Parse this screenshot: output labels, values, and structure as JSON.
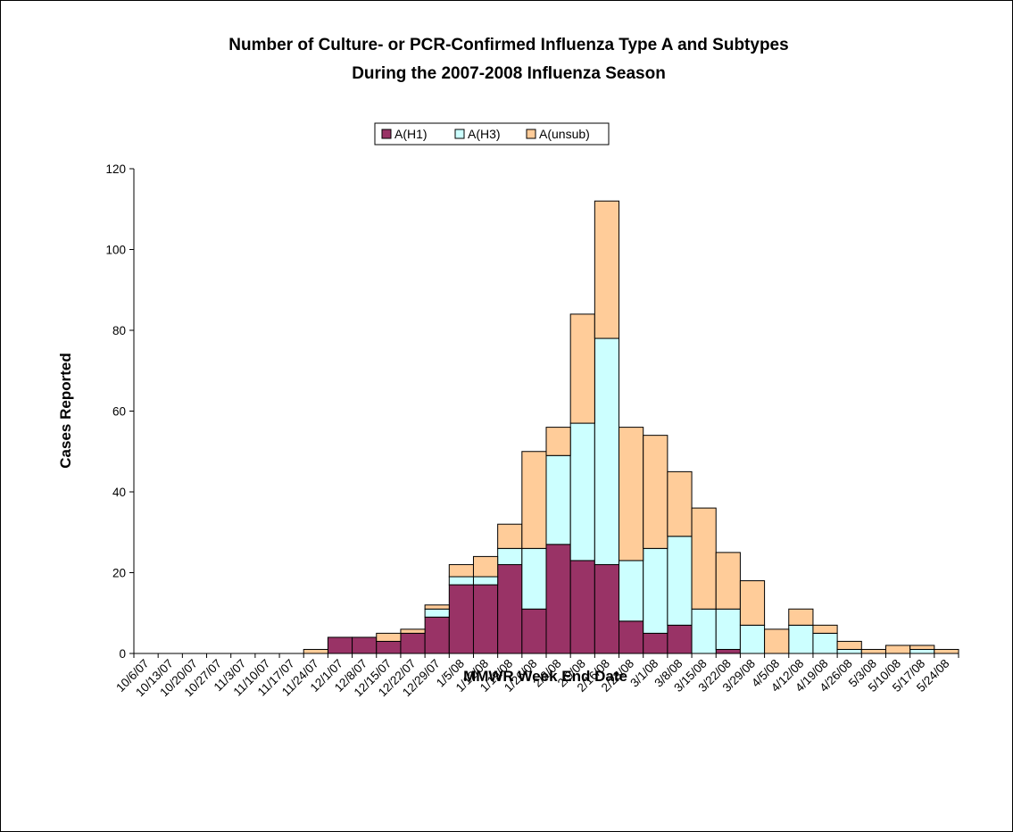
{
  "chart_data": {
    "type": "stacked-bar",
    "title": [
      "Number of Culture- or PCR-Confirmed Influenza Type A and Subtypes",
      "During the 2007-2008 Influenza Season"
    ],
    "x_label": "MMWR Week End Date",
    "y_label": "Cases Reported",
    "categories": [
      "10/6/07",
      "10/13/07",
      "10/20/07",
      "10/27/07",
      "11/3/07",
      "11/10/07",
      "11/17/07",
      "11/24/07",
      "12/1/07",
      "12/8/07",
      "12/15/07",
      "12/22/07",
      "12/29/07",
      "1/5/08",
      "1/12/08",
      "1/19/08",
      "1/26/08",
      "2/2/08",
      "2/9/08",
      "2/16/08",
      "2/23/08",
      "3/1/08",
      "3/8/08",
      "3/15/08",
      "3/22/08",
      "3/29/08",
      "4/5/08",
      "4/12/08",
      "4/19/08",
      "4/26/08",
      "5/3/08",
      "5/10/08",
      "5/17/08",
      "5/24/08"
    ],
    "series": [
      {
        "name": "A(H1)",
        "color": "#993366",
        "values": [
          0,
          0,
          0,
          0,
          0,
          0,
          0,
          0,
          4,
          4,
          3,
          5,
          9,
          17,
          17,
          22,
          11,
          27,
          23,
          22,
          8,
          5,
          7,
          0,
          1,
          0,
          0,
          0,
          0,
          0,
          0,
          0,
          0,
          0
        ]
      },
      {
        "name": "A(H3)",
        "color": "#ccffff",
        "values": [
          0,
          0,
          0,
          0,
          0,
          0,
          0,
          0,
          0,
          0,
          0,
          0,
          2,
          2,
          2,
          4,
          15,
          22,
          34,
          56,
          15,
          21,
          22,
          11,
          10,
          7,
          0,
          7,
          5,
          1,
          0,
          0,
          1,
          0
        ]
      },
      {
        "name": "A(unsub)",
        "color": "#ffcc99",
        "values": [
          0,
          0,
          0,
          0,
          0,
          0,
          0,
          1,
          0,
          0,
          2,
          1,
          1,
          3,
          5,
          6,
          24,
          7,
          27,
          34,
          33,
          28,
          16,
          25,
          14,
          11,
          6,
          4,
          2,
          2,
          1,
          2,
          1,
          1
        ]
      }
    ],
    "ylim": [
      0,
      120
    ],
    "yticks": [
      0,
      20,
      40,
      60,
      80,
      100,
      120
    ],
    "grid": false,
    "legend": "top"
  }
}
